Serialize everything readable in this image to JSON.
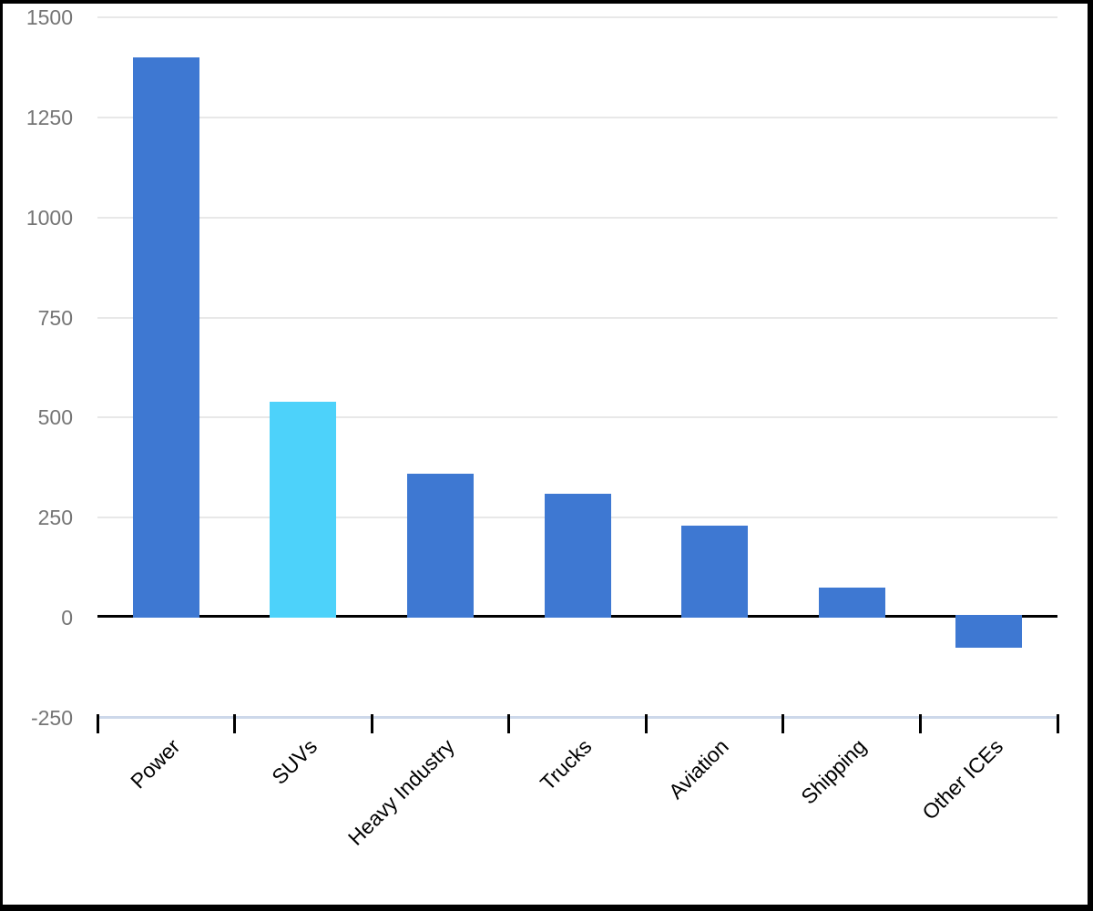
{
  "chart_data": {
    "type": "bar",
    "title": "",
    "xlabel": "",
    "ylabel": "",
    "categories": [
      "Power",
      "SUVs",
      "Heavy Industry",
      "Trucks",
      "Aviation",
      "Shipping",
      "Other ICEs"
    ],
    "values": [
      1400,
      540,
      360,
      310,
      230,
      75,
      -75
    ],
    "highlight_index": 1,
    "ylim": [
      -250,
      1500
    ],
    "ytick_labels": [
      "-250",
      "0",
      "250",
      "500",
      "750",
      "1000",
      "1250",
      "1500"
    ],
    "ytick_values": [
      -250,
      0,
      250,
      500,
      750,
      1000,
      1250,
      1500
    ],
    "gridline_values": [
      250,
      500,
      750,
      1000,
      1250,
      1500
    ],
    "grid": "on",
    "legend": "none",
    "colors": {
      "bar_default": "#3E78D2",
      "bar_highlight": "#4DD2FA",
      "gridline": "#E8E8E8",
      "zero_line": "#000000",
      "x_axis_line": "#CDD8EA",
      "x_tick": "#000000",
      "y_label_text": "#757575",
      "x_label_text": "#000000",
      "background": "#FFFFFF",
      "frame_border": "#000000"
    }
  }
}
